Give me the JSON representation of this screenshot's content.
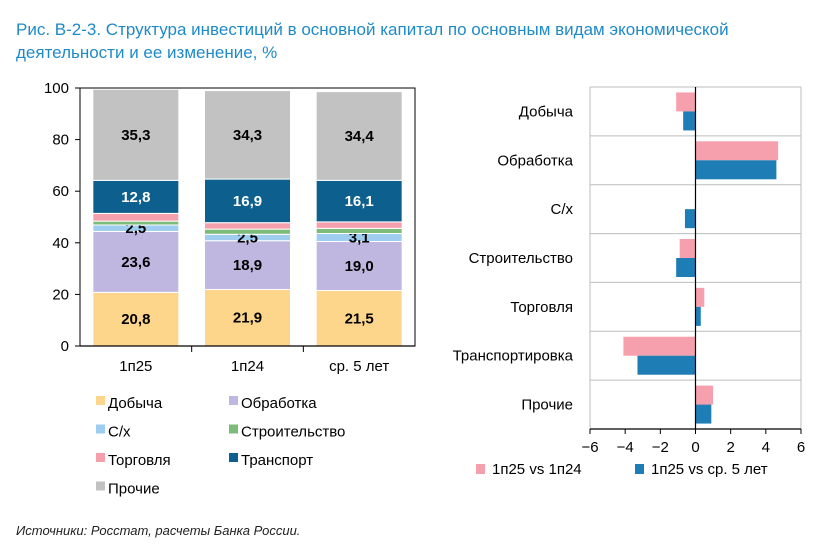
{
  "title": "Рис. В-2-3. Структура инвестиций в основной капитал по основным видам экономической деятельности и ее изменение, %",
  "source": "Источники: Росстат, расчеты Банка России.",
  "chart_data": [
    {
      "type": "bar",
      "stacked": true,
      "categories": [
        "1п25",
        "1п24",
        "ср. 5 лет"
      ],
      "ylim": [
        0,
        100
      ],
      "yticks": [
        0,
        20,
        40,
        60,
        80,
        100
      ],
      "legend_position": "bottom",
      "series": [
        {
          "name": "Добыча",
          "color": "#fdd58b",
          "values": [
            20.8,
            21.9,
            21.5
          ],
          "labels": [
            "20,8",
            "21,9",
            "21,5"
          ],
          "label_color": "#000000"
        },
        {
          "name": "Обработка",
          "color": "#bfb7e0",
          "values": [
            23.6,
            18.9,
            19.0
          ],
          "labels": [
            "23,6",
            "18,9",
            "19,0"
          ],
          "label_color": "#000000"
        },
        {
          "name": "С/х",
          "color": "#9fcdf0",
          "values": [
            2.5,
            2.5,
            3.1
          ],
          "labels": [
            "2,5",
            "2,5",
            "3,1"
          ],
          "label_color": "#000000"
        },
        {
          "name": "Строительство",
          "color": "#7dbb7b",
          "values": [
            1.5,
            2.0,
            2.0
          ],
          "labels": [
            "",
            "",
            ""
          ]
        },
        {
          "name": "Торговля",
          "color": "#f6a0ae",
          "values": [
            3.0,
            2.5,
            2.5
          ],
          "labels": [
            "",
            "",
            ""
          ]
        },
        {
          "name": "Транспорт",
          "color": "#0d5f8e",
          "values": [
            12.8,
            16.9,
            16.1
          ],
          "labels": [
            "12,8",
            "16,9",
            "16,1"
          ],
          "label_color": "#ffffff"
        },
        {
          "name": "Прочие",
          "color": "#c2c2c2",
          "values": [
            35.3,
            34.3,
            34.4
          ],
          "labels": [
            "35,3",
            "34,3",
            "34,4"
          ],
          "label_color": "#000000"
        }
      ]
    },
    {
      "type": "bar",
      "orientation": "horizontal",
      "categories": [
        "Добыча",
        "Обработка",
        "С/х",
        "Строительство",
        "Торговля",
        "Транспортировка",
        "Прочие"
      ],
      "xlim": [
        -6,
        6
      ],
      "xticks": [
        -6,
        -4,
        -2,
        0,
        2,
        4,
        6
      ],
      "legend_position": "bottom",
      "series": [
        {
          "name": "1п25 vs 1п24",
          "color": "#f6a0ae",
          "values": [
            -1.1,
            4.7,
            0.0,
            -0.9,
            0.5,
            -4.1,
            1.0
          ]
        },
        {
          "name": "1п25 vs ср. 5 лет",
          "color": "#1f7db5",
          "values": [
            -0.7,
            4.6,
            -0.6,
            -1.1,
            0.3,
            -3.3,
            0.9
          ]
        }
      ]
    }
  ]
}
